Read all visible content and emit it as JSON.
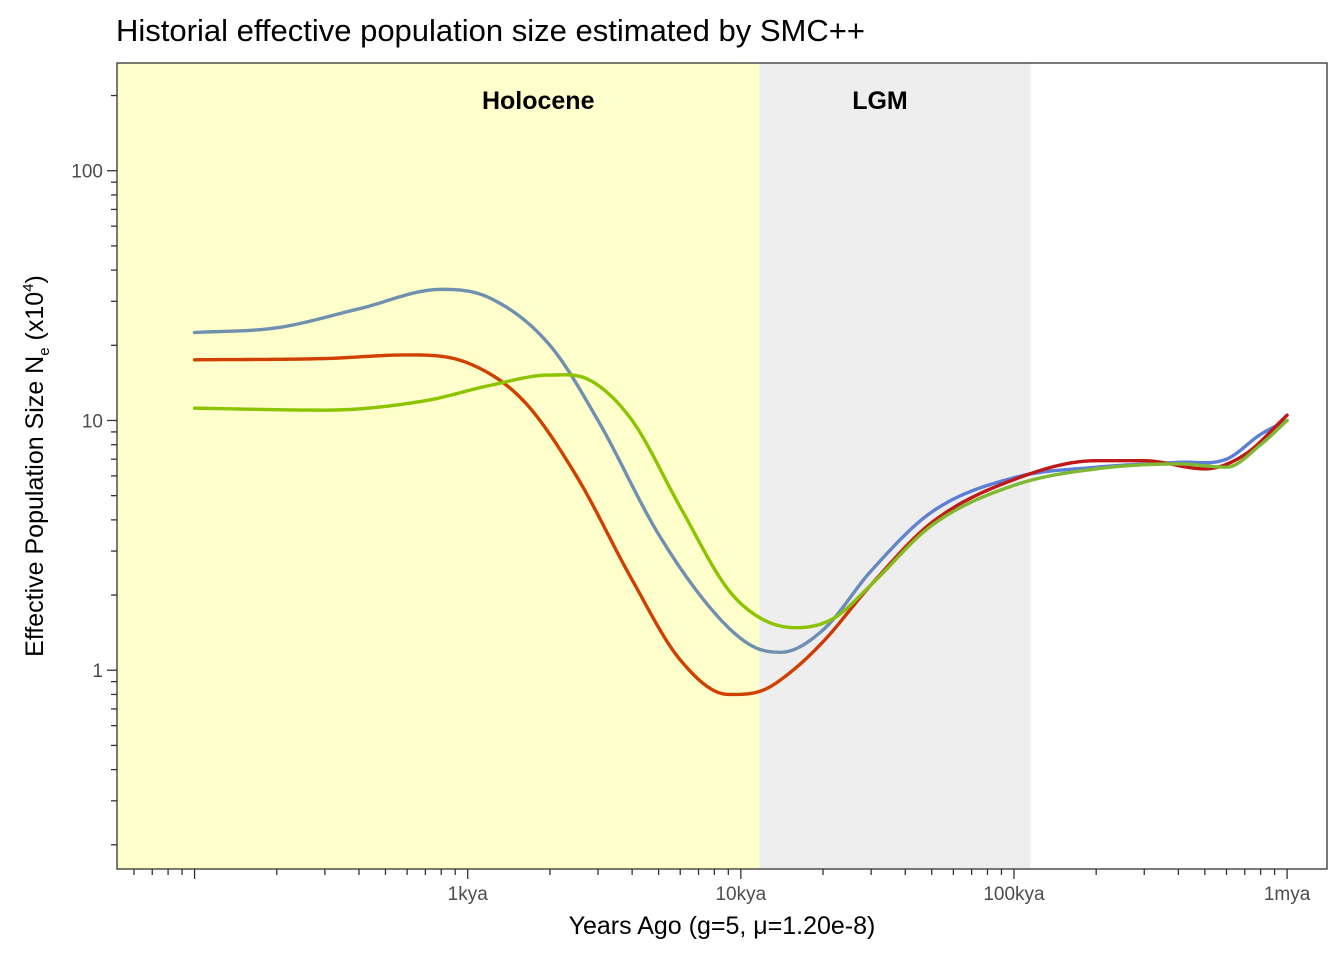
{
  "chart_data": {
    "type": "line",
    "title": "Historial effective population size estimated by SMC++",
    "xlabel": "Years Ago (g=5, μ=1.20e-8)",
    "ylabel": {
      "prefix": "Effective Population Size N",
      "subscript": "e",
      "middle": " (x10",
      "superscript": "4",
      "suffix": ")"
    },
    "x_scale": "log",
    "y_scale": "log",
    "xlim": [
      52,
      1400000
    ],
    "ylim": [
      0.16,
      270
    ],
    "x_ticks": [
      {
        "value": 1000,
        "label": "1kya"
      },
      {
        "value": 10000,
        "label": "10kya"
      },
      {
        "value": 100000,
        "label": "100kya"
      },
      {
        "value": 1000000,
        "label": "1mya"
      }
    ],
    "y_ticks": [
      {
        "value": 1,
        "label": "1"
      },
      {
        "value": 10,
        "label": "10"
      },
      {
        "value": 100,
        "label": "100"
      }
    ],
    "regions": [
      {
        "label": "Holocene",
        "from": 52,
        "to": 11700,
        "color": "#ffffcc"
      },
      {
        "label": "LGM",
        "from": 11700,
        "to": 115000,
        "color": "#eeeeee"
      }
    ],
    "series": [
      {
        "color_start": "#7090b0",
        "color_end": "#5b7fd6",
        "points": [
          [
            100,
            22.5
          ],
          [
            200,
            23.5
          ],
          [
            400,
            28
          ],
          [
            800,
            33.5
          ],
          [
            1200,
            31
          ],
          [
            2000,
            20
          ],
          [
            3000,
            10
          ],
          [
            5000,
            3.5
          ],
          [
            8000,
            1.7
          ],
          [
            11000,
            1.25
          ],
          [
            14000,
            1.18
          ],
          [
            20000,
            1.45
          ],
          [
            30000,
            2.5
          ],
          [
            50000,
            4.3
          ],
          [
            100000,
            5.9
          ],
          [
            200000,
            6.5
          ],
          [
            400000,
            6.8
          ],
          [
            600000,
            7.0
          ],
          [
            800000,
            8.8
          ],
          [
            1000000,
            10.0
          ]
        ]
      },
      {
        "color_start": "#d04000",
        "color_end": "#c01818",
        "points": [
          [
            100,
            17.5
          ],
          [
            300,
            17.7
          ],
          [
            600,
            18.3
          ],
          [
            1000,
            17
          ],
          [
            1600,
            12
          ],
          [
            2500,
            6
          ],
          [
            4000,
            2.3
          ],
          [
            6000,
            1.1
          ],
          [
            9000,
            0.8
          ],
          [
            12000,
            0.83
          ],
          [
            15000,
            0.97
          ],
          [
            20000,
            1.3
          ],
          [
            30000,
            2.2
          ],
          [
            50000,
            3.9
          ],
          [
            100000,
            5.8
          ],
          [
            200000,
            6.9
          ],
          [
            300000,
            6.9
          ],
          [
            500000,
            6.4
          ],
          [
            700000,
            7.3
          ],
          [
            1000000,
            10.5
          ]
        ]
      },
      {
        "color_start": "#8bc400",
        "color_end": "#7fb832",
        "points": [
          [
            100,
            11.2
          ],
          [
            300,
            11
          ],
          [
            700,
            12
          ],
          [
            1200,
            13.8
          ],
          [
            2000,
            15.2
          ],
          [
            2800,
            14.5
          ],
          [
            4000,
            10
          ],
          [
            6000,
            4.5
          ],
          [
            9000,
            2.1
          ],
          [
            12000,
            1.6
          ],
          [
            16000,
            1.48
          ],
          [
            22000,
            1.62
          ],
          [
            30000,
            2.2
          ],
          [
            50000,
            3.8
          ],
          [
            100000,
            5.5
          ],
          [
            200000,
            6.4
          ],
          [
            400000,
            6.7
          ],
          [
            600000,
            6.5
          ],
          [
            800000,
            8.0
          ],
          [
            1000000,
            10.0
          ]
        ]
      }
    ]
  }
}
